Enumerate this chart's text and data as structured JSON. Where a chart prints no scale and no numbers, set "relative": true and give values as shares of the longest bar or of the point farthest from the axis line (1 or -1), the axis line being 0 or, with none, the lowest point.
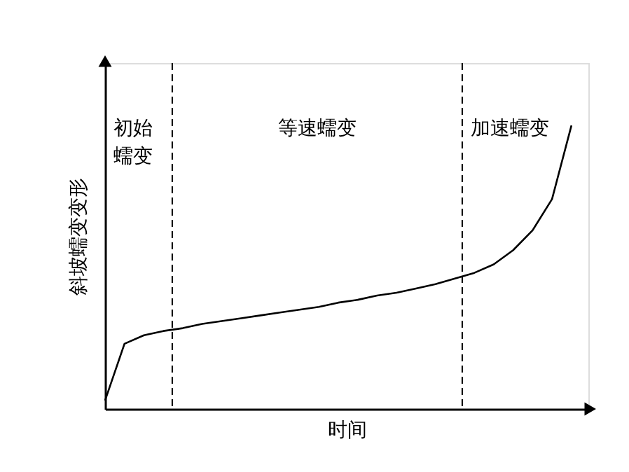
{
  "chart_data": {
    "type": "line",
    "relative": true,
    "xlabel": "时间",
    "ylabel": "斜坡蠕变变形",
    "tick_labels": false,
    "grid": false,
    "legend": false,
    "marker": "none",
    "line_style": "solid",
    "categories": [
      null,
      null,
      null,
      null,
      null,
      null,
      null,
      null,
      null,
      null,
      null,
      null,
      null,
      null,
      null,
      null,
      null,
      null,
      null,
      null,
      null,
      null,
      null,
      null,
      null
    ],
    "series": [
      {
        "color": "#000000",
        "values": [
          0.03,
          0.23,
          0.26,
          0.275,
          0.285,
          0.3,
          0.31,
          0.32,
          0.33,
          0.34,
          0.35,
          0.36,
          0.375,
          0.385,
          0.4,
          0.41,
          0.425,
          0.44,
          0.46,
          0.48,
          0.51,
          0.56,
          0.63,
          0.74,
          1.0
        ]
      }
    ],
    "annotations": [
      "初始蠕变",
      "等速蠕变",
      "加速蠕变"
    ]
  }
}
